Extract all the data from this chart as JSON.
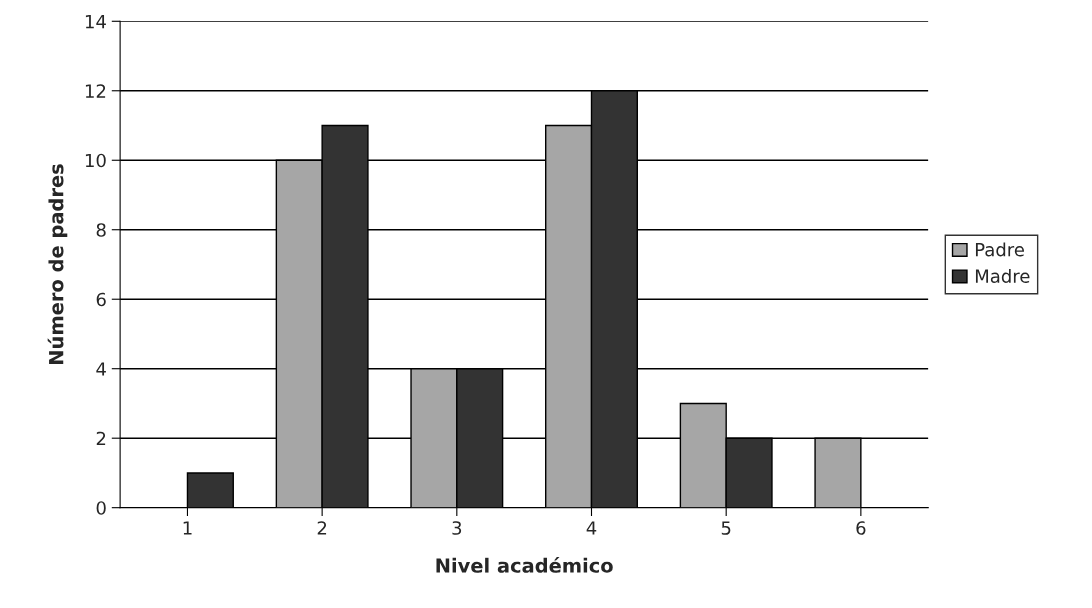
{
  "chart_data": {
    "type": "bar",
    "xlabel": "Nivel académico",
    "ylabel": "Número de padres",
    "categories": [
      "1",
      "2",
      "3",
      "4",
      "5",
      "6"
    ],
    "series": [
      {
        "name": "Padre",
        "color": "#a6a6a6",
        "values": [
          0,
          10,
          4,
          11,
          3,
          2
        ]
      },
      {
        "name": "Madre",
        "color": "#333333",
        "values": [
          1,
          11,
          4,
          12,
          2,
          0
        ]
      }
    ],
    "ylim": [
      0,
      14
    ],
    "yticks": [
      0,
      2,
      4,
      6,
      8,
      10,
      12,
      14
    ],
    "grid": "y",
    "legend": "right"
  }
}
